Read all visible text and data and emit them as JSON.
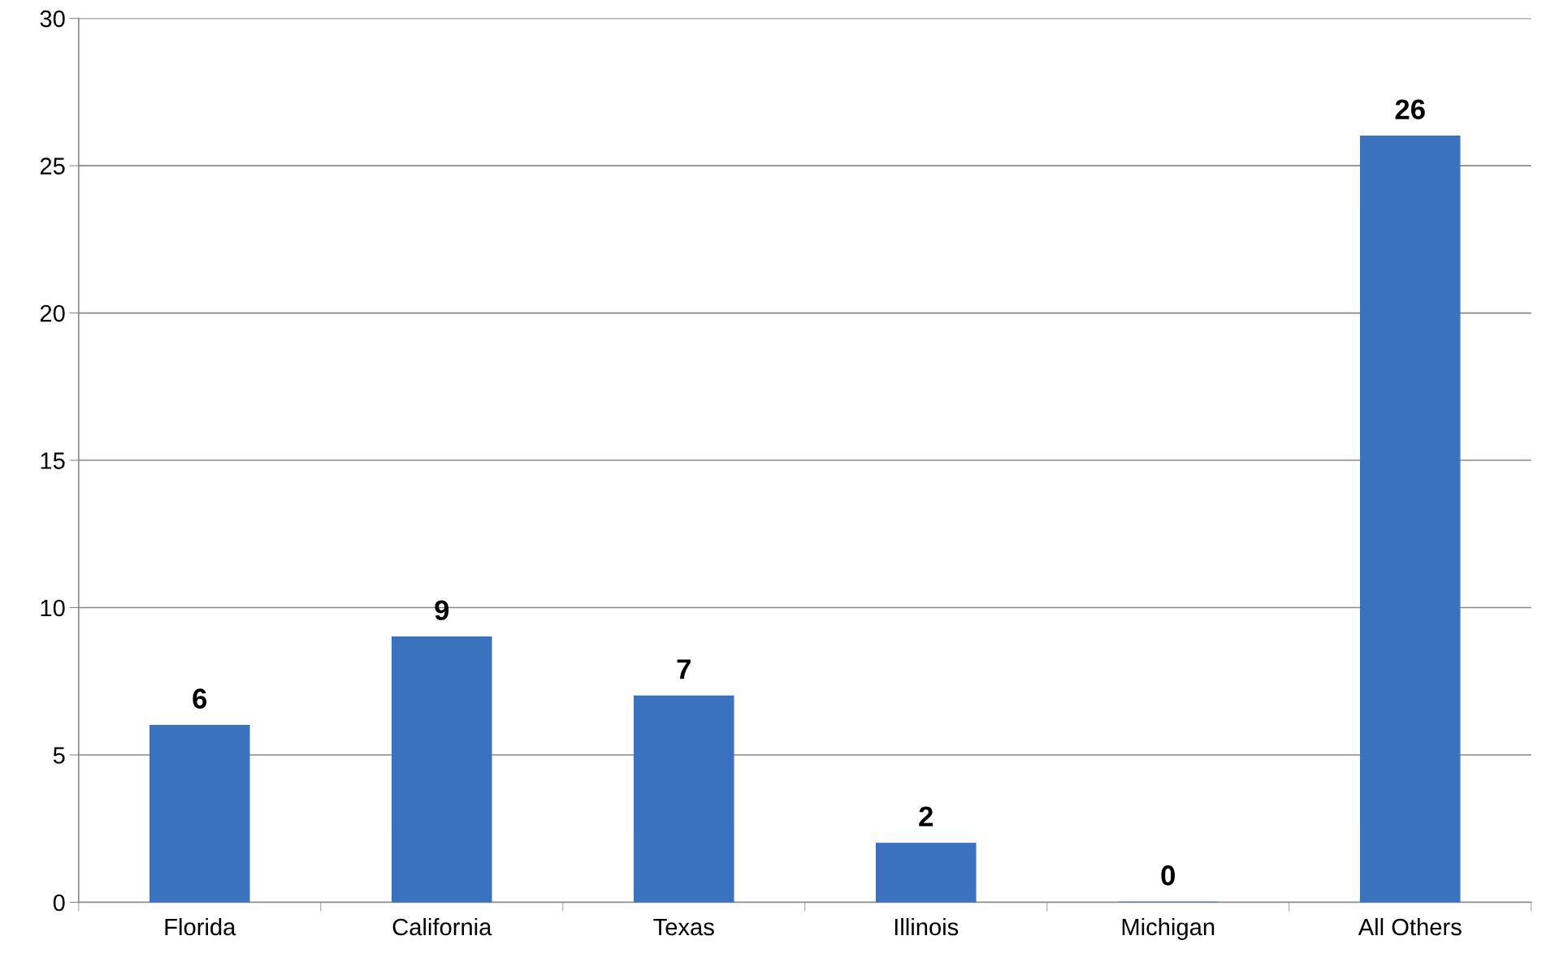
{
  "chart_data": {
    "type": "bar",
    "categories": [
      "Florida",
      "California",
      "Texas",
      "Illinois",
      "Michigan",
      "All Others"
    ],
    "values": [
      6,
      9,
      7,
      2,
      0,
      26
    ],
    "color": "#3a72bd",
    "ylim": [
      0,
      30
    ],
    "yticks": [
      0,
      5,
      10,
      15,
      20,
      25,
      30
    ],
    "grid": "y",
    "data_labels": true
  }
}
